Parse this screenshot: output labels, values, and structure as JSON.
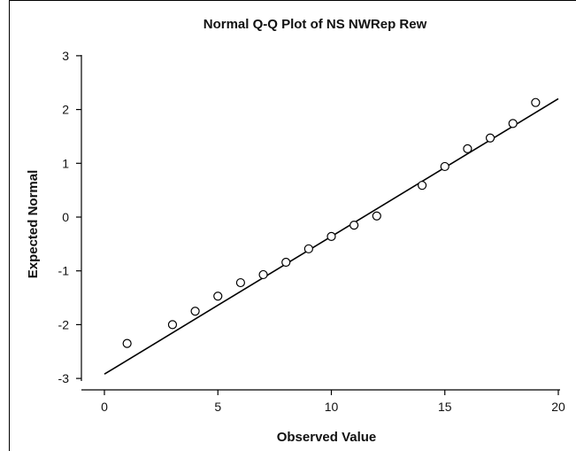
{
  "chart_data": {
    "type": "scatter",
    "title": "Normal Q-Q Plot of NS NWRep Rew",
    "xlabel": "Observed Value",
    "ylabel": "Expected Normal",
    "xlim": [
      -1.2,
      20.2
    ],
    "ylim": [
      -3.3,
      3.2
    ],
    "x_ticks": [
      0,
      5,
      10,
      15,
      20
    ],
    "y_ticks": [
      -3,
      -2,
      -1,
      0,
      1,
      2,
      3
    ],
    "x_tick_labels": [
      "0",
      "5",
      "10",
      "15",
      "20"
    ],
    "y_tick_labels": [
      "-3",
      "-2",
      "-1",
      "0",
      "1",
      "2",
      "3"
    ],
    "grid": false,
    "series": [
      {
        "x": [
          1,
          3,
          4,
          5,
          6,
          7,
          8,
          9,
          10,
          11,
          12,
          14,
          15,
          16,
          17,
          18,
          19
        ],
        "y": [
          -2.35,
          -2.0,
          -1.75,
          -1.47,
          -1.22,
          -1.07,
          -0.84,
          -0.59,
          -0.36,
          -0.15,
          0.02,
          0.59,
          0.94,
          1.27,
          1.47,
          1.74,
          2.13
        ]
      }
    ],
    "reference_line": {
      "x": [
        0,
        20
      ],
      "y": [
        -2.92,
        2.2
      ]
    }
  }
}
